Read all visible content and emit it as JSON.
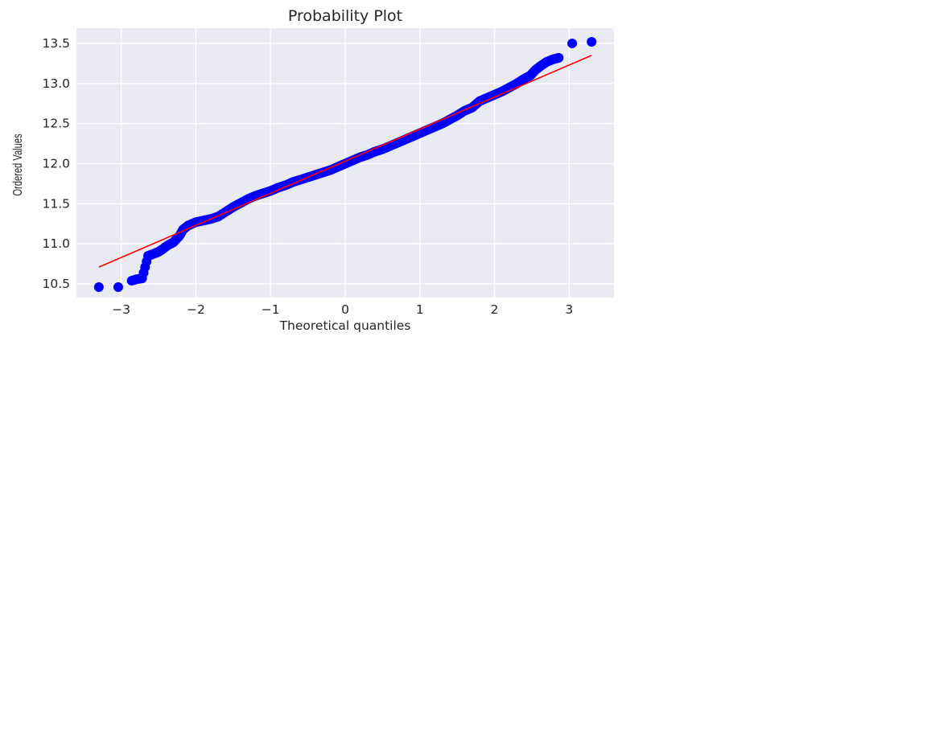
{
  "chart_data": {
    "type": "scatter",
    "title": "Probability Plot",
    "xlabel": "Theoretical quantiles",
    "ylabel": "Ordered Values",
    "xlim": [
      -3.6,
      3.6
    ],
    "ylim": [
      10.33,
      13.69
    ],
    "xticks": [
      -3,
      -2,
      -1,
      0,
      1,
      2,
      3
    ],
    "xtick_labels": [
      "−3",
      "−2",
      "−1",
      "0",
      "1",
      "2",
      "3"
    ],
    "yticks": [
      10.5,
      11.0,
      11.5,
      12.0,
      12.5,
      13.0,
      13.5
    ],
    "ytick_labels": [
      "10.5",
      "11.0",
      "11.5",
      "12.0",
      "12.5",
      "13.0",
      "13.5"
    ],
    "grid": true,
    "background": "#eaeaf2",
    "colors": {
      "points": "#0000ff",
      "fit_line": "#ff0000",
      "grid": "#ffffff"
    },
    "series": [
      {
        "kind": "points",
        "points": [
          [
            -3.3,
            10.46
          ],
          [
            -3.04,
            10.46
          ],
          [
            -2.86,
            10.54
          ],
          [
            -2.79,
            10.56
          ],
          [
            -2.72,
            10.57
          ],
          [
            -2.64,
            10.85
          ],
          [
            -2.58,
            10.87
          ],
          [
            -2.5,
            10.9
          ],
          [
            -2.45,
            10.93
          ],
          [
            -2.38,
            10.98
          ],
          [
            -2.3,
            11.02
          ],
          [
            -2.22,
            11.1
          ],
          [
            -2.17,
            11.18
          ],
          [
            -2.1,
            11.23
          ],
          [
            -2.0,
            11.27
          ],
          [
            -1.9,
            11.29
          ],
          [
            -1.8,
            11.31
          ],
          [
            -1.7,
            11.34
          ],
          [
            -1.6,
            11.4
          ],
          [
            -1.5,
            11.46
          ],
          [
            -1.4,
            11.51
          ],
          [
            -1.3,
            11.56
          ],
          [
            -1.2,
            11.6
          ],
          [
            -1.1,
            11.63
          ],
          [
            -1.0,
            11.66
          ],
          [
            -0.9,
            11.7
          ],
          [
            -0.8,
            11.73
          ],
          [
            -0.7,
            11.77
          ],
          [
            -0.6,
            11.8
          ],
          [
            -0.5,
            11.83
          ],
          [
            -0.4,
            11.86
          ],
          [
            -0.3,
            11.89
          ],
          [
            -0.2,
            11.92
          ],
          [
            -0.1,
            11.96
          ],
          [
            0.0,
            12.0
          ],
          [
            0.1,
            12.04
          ],
          [
            0.2,
            12.08
          ],
          [
            0.3,
            12.11
          ],
          [
            0.4,
            12.15
          ],
          [
            0.5,
            12.18
          ],
          [
            0.6,
            12.22
          ],
          [
            0.7,
            12.26
          ],
          [
            0.8,
            12.3
          ],
          [
            0.9,
            12.34
          ],
          [
            1.0,
            12.38
          ],
          [
            1.1,
            12.42
          ],
          [
            1.2,
            12.46
          ],
          [
            1.3,
            12.5
          ],
          [
            1.4,
            12.55
          ],
          [
            1.5,
            12.6
          ],
          [
            1.6,
            12.66
          ],
          [
            1.7,
            12.7
          ],
          [
            1.8,
            12.78
          ],
          [
            1.9,
            12.82
          ],
          [
            2.0,
            12.86
          ],
          [
            2.1,
            12.9
          ],
          [
            2.2,
            12.95
          ],
          [
            2.3,
            13.0
          ],
          [
            2.4,
            13.06
          ],
          [
            2.48,
            13.1
          ],
          [
            2.55,
            13.17
          ],
          [
            2.62,
            13.22
          ],
          [
            2.7,
            13.27
          ],
          [
            2.78,
            13.3
          ],
          [
            2.86,
            13.32
          ],
          [
            3.04,
            13.5
          ],
          [
            3.3,
            13.52
          ]
        ]
      },
      {
        "kind": "fit_line",
        "points": [
          [
            -3.3,
            10.71
          ],
          [
            3.3,
            13.35
          ]
        ]
      }
    ]
  }
}
